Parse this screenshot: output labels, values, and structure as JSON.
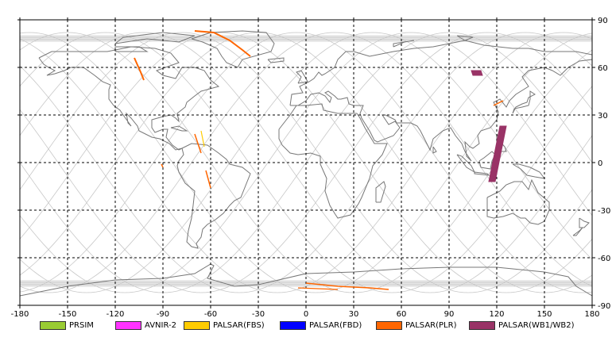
{
  "map": {
    "lon_ticks": [
      "-180",
      "-150",
      "-120",
      "-90",
      "-60",
      "-30",
      "0",
      "30",
      "60",
      "90",
      "120",
      "150",
      "180"
    ],
    "lat_ticks_right": [
      "90",
      "60",
      "30",
      "0",
      "-30",
      "-60",
      "-90"
    ]
  },
  "legend": [
    {
      "label": "PRSIM",
      "color": "#99cc33"
    },
    {
      "label": "AVNIR-2",
      "color": "#ff33ff"
    },
    {
      "label": "PALSAR(FBS)",
      "color": "#ffcc00"
    },
    {
      "label": "PALSAR(FBD)",
      "color": "#0000ff"
    },
    {
      "label": "PALSAR(PLR)",
      "color": "#ff6600"
    },
    {
      "label": "PALSAR(WB1/WB2)",
      "color": "#993366"
    }
  ]
}
